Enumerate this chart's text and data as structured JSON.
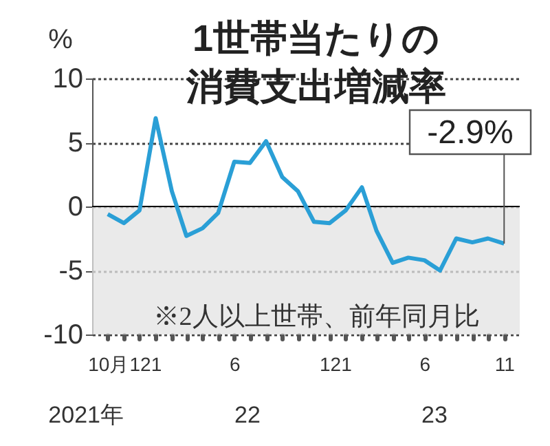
{
  "chart_data": {
    "type": "line",
    "title": "1世帯当たりの消費支出増減率",
    "ylabel": "%",
    "x": [
      "2021-10",
      "2021-11",
      "2021-12",
      "2022-01",
      "2022-02",
      "2022-03",
      "2022-04",
      "2022-05",
      "2022-06",
      "2022-07",
      "2022-08",
      "2022-09",
      "2022-10",
      "2022-11",
      "2022-12",
      "2023-01",
      "2023-02",
      "2023-03",
      "2023-04",
      "2023-05",
      "2023-06",
      "2023-07",
      "2023-08",
      "2023-09",
      "2023-10",
      "2023-11"
    ],
    "series": [
      {
        "color": "#2a9fd6",
        "values": [
          -0.6,
          -1.3,
          -0.3,
          6.9,
          1.2,
          -2.3,
          -1.7,
          -0.5,
          3.5,
          3.4,
          5.1,
          2.3,
          1.2,
          -1.2,
          -1.3,
          -0.3,
          1.5,
          -1.9,
          -4.4,
          -4.0,
          -4.2,
          -5.0,
          -2.5,
          -2.8,
          -2.5,
          -2.9
        ]
      }
    ],
    "xlim": [
      "2021-09",
      "2023-12"
    ],
    "xticks": [
      {
        "value": "2021-10",
        "label": "10月"
      },
      {
        "value": "2021-11",
        "label": null
      },
      {
        "value": "2021-12",
        "label": "12"
      },
      {
        "value": "2022-01",
        "label": "1"
      },
      {
        "value": "2022-02",
        "label": null
      },
      {
        "value": "2022-03",
        "label": null
      },
      {
        "value": "2022-04",
        "label": null
      },
      {
        "value": "2022-05",
        "label": null
      },
      {
        "value": "2022-06",
        "label": "6"
      },
      {
        "value": "2022-07",
        "label": null
      },
      {
        "value": "2022-08",
        "label": null
      },
      {
        "value": "2022-09",
        "label": null
      },
      {
        "value": "2022-10",
        "label": null
      },
      {
        "value": "2022-11",
        "label": null
      },
      {
        "value": "2022-12",
        "label": "12"
      },
      {
        "value": "2023-01",
        "label": "1"
      },
      {
        "value": "2023-02",
        "label": null
      },
      {
        "value": "2023-03",
        "label": null
      },
      {
        "value": "2023-04",
        "label": null
      },
      {
        "value": "2023-05",
        "label": null
      },
      {
        "value": "2023-06",
        "label": "6"
      },
      {
        "value": "2023-07",
        "label": null
      },
      {
        "value": "2023-08",
        "label": null
      },
      {
        "value": "2023-09",
        "label": null
      },
      {
        "value": "2023-10",
        "label": null
      },
      {
        "value": "2023-11",
        "label": "11"
      }
    ],
    "ylim": [
      -10,
      10
    ],
    "yticks": [
      -10,
      -5,
      0,
      5,
      10
    ],
    "grid": "y",
    "marker": "none",
    "line_style": "solid",
    "ref_lines": [
      {
        "axis": "y",
        "value": 0,
        "color": "#000000"
      }
    ],
    "bands": [
      {
        "axis": "y",
        "from": -10,
        "to": 0,
        "color": "#e3e3e3"
      }
    ],
    "annotations": [
      {
        "text": "-2.9%",
        "x": "2023-11",
        "y": -2.9
      },
      "※2人以上世帯、前年同月比",
      "2021年",
      "22",
      "23"
    ]
  }
}
